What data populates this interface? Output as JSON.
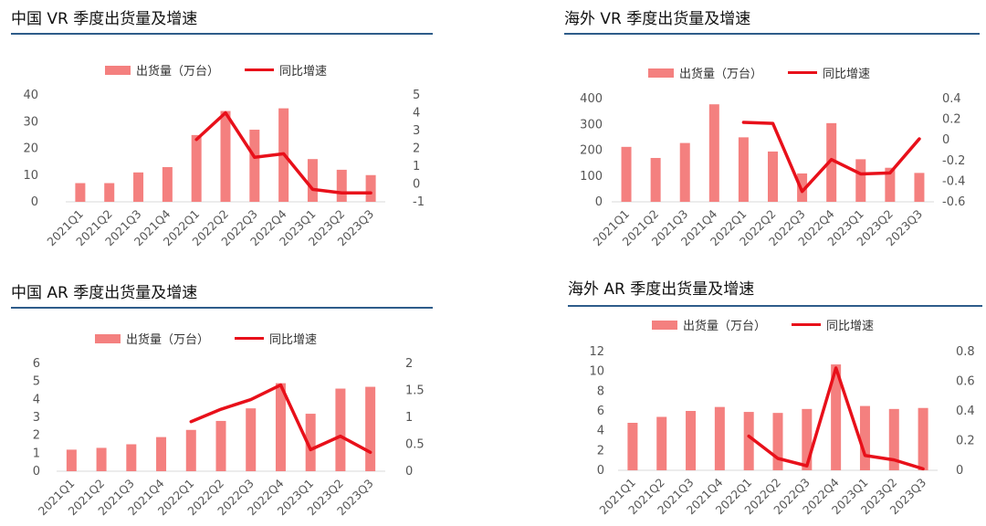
{
  "chart_data": [
    {
      "type": "bar",
      "title": "中国 VR 季度出货量及增速",
      "categories": [
        "2021Q1",
        "2021Q2",
        "2021Q3",
        "2021Q4",
        "2022Q1",
        "2022Q2",
        "2022Q3",
        "2022Q4",
        "2023Q1",
        "2023Q2",
        "2023Q3"
      ],
      "series": [
        {
          "name": "出货量（万台）",
          "type": "bar",
          "axis": "left",
          "values": [
            7,
            7,
            11,
            13,
            25,
            34,
            27,
            35,
            16,
            12,
            10
          ]
        },
        {
          "name": "同比增速",
          "type": "line",
          "axis": "right",
          "values": [
            null,
            null,
            null,
            null,
            2.5,
            4.0,
            1.5,
            1.7,
            -0.3,
            -0.5,
            -0.5
          ]
        }
      ],
      "ylim_left": [
        0,
        40
      ],
      "yticks_left": [
        "0",
        "10",
        "20",
        "30",
        "40"
      ],
      "ylim_right": [
        -1,
        5
      ],
      "yticks_right": [
        "-1",
        "0",
        "1",
        "2",
        "3",
        "4",
        "5"
      ],
      "legend_position": "top"
    },
    {
      "type": "bar",
      "title": "海外 VR 季度出货量及增速",
      "categories": [
        "2021Q1",
        "2021Q2",
        "2021Q3",
        "2021Q4",
        "2022Q1",
        "2022Q2",
        "2022Q3",
        "2022Q4",
        "2023Q1",
        "2023Q2",
        "2023Q3"
      ],
      "series": [
        {
          "name": "出货量（万台）",
          "type": "bar",
          "axis": "left",
          "values": [
            213,
            170,
            228,
            378,
            250,
            195,
            110,
            305,
            165,
            132,
            112
          ]
        },
        {
          "name": "同比增速",
          "type": "line",
          "axis": "right",
          "values": [
            null,
            null,
            null,
            null,
            0.17,
            0.16,
            -0.5,
            -0.19,
            -0.33,
            -0.32,
            0.01
          ]
        }
      ],
      "ylim_left": [
        0,
        400
      ],
      "yticks_left": [
        "0",
        "100",
        "200",
        "300",
        "400"
      ],
      "ylim_right": [
        -0.6,
        0.4
      ],
      "yticks_right": [
        "-0.6",
        "-0.4",
        "-0.2",
        "0",
        "0.2",
        "0.4"
      ],
      "legend_position": "top"
    },
    {
      "type": "bar",
      "title": "中国 AR 季度出货量及增速",
      "categories": [
        "2021Q1",
        "2021Q2",
        "2021Q3",
        "2021Q4",
        "2022Q1",
        "2022Q2",
        "2022Q3",
        "2022Q4",
        "2023Q1",
        "2023Q2",
        "2023Q3"
      ],
      "series": [
        {
          "name": "出货量（万台）",
          "type": "bar",
          "axis": "left",
          "values": [
            1.2,
            1.3,
            1.5,
            1.9,
            2.3,
            2.8,
            3.5,
            4.9,
            3.2,
            4.6,
            4.7
          ]
        },
        {
          "name": "同比增速",
          "type": "line",
          "axis": "right",
          "values": [
            null,
            null,
            null,
            null,
            0.92,
            1.15,
            1.33,
            1.6,
            0.4,
            0.65,
            0.35
          ]
        }
      ],
      "ylim_left": [
        0,
        6
      ],
      "yticks_left": [
        "0",
        "1",
        "2",
        "3",
        "4",
        "5",
        "6"
      ],
      "ylim_right": [
        0,
        2
      ],
      "yticks_right": [
        "0",
        "0.5",
        "1",
        "1.5",
        "2"
      ],
      "legend_position": "top"
    },
    {
      "type": "bar",
      "title": "海外 AR 季度出货量及增速",
      "categories": [
        "2021Q1",
        "2021Q2",
        "2021Q3",
        "2021Q4",
        "2022Q1",
        "2022Q2",
        "2022Q3",
        "2022Q4",
        "2023Q1",
        "2023Q2",
        "2023Q3"
      ],
      "series": [
        {
          "name": "出货量（万台）",
          "type": "bar",
          "axis": "left",
          "values": [
            4.8,
            5.4,
            6.0,
            6.4,
            5.9,
            5.8,
            6.2,
            10.7,
            6.5,
            6.2,
            6.3
          ]
        },
        {
          "name": "同比增速",
          "type": "line",
          "axis": "right",
          "values": [
            null,
            null,
            null,
            null,
            0.23,
            0.08,
            0.03,
            0.69,
            0.1,
            0.07,
            0.01
          ]
        }
      ],
      "ylim_left": [
        0,
        12
      ],
      "yticks_left": [
        "0",
        "2",
        "4",
        "6",
        "8",
        "10",
        "12"
      ],
      "ylim_right": [
        0,
        0.8
      ],
      "yticks_right": [
        "0",
        "0.2",
        "0.4",
        "0.6",
        "0.8"
      ],
      "legend_position": "top"
    }
  ],
  "colors": {
    "bar": "#f4807f",
    "line": "#e8101a",
    "rule": "#2e5c8a",
    "axis_text": "#555555"
  }
}
